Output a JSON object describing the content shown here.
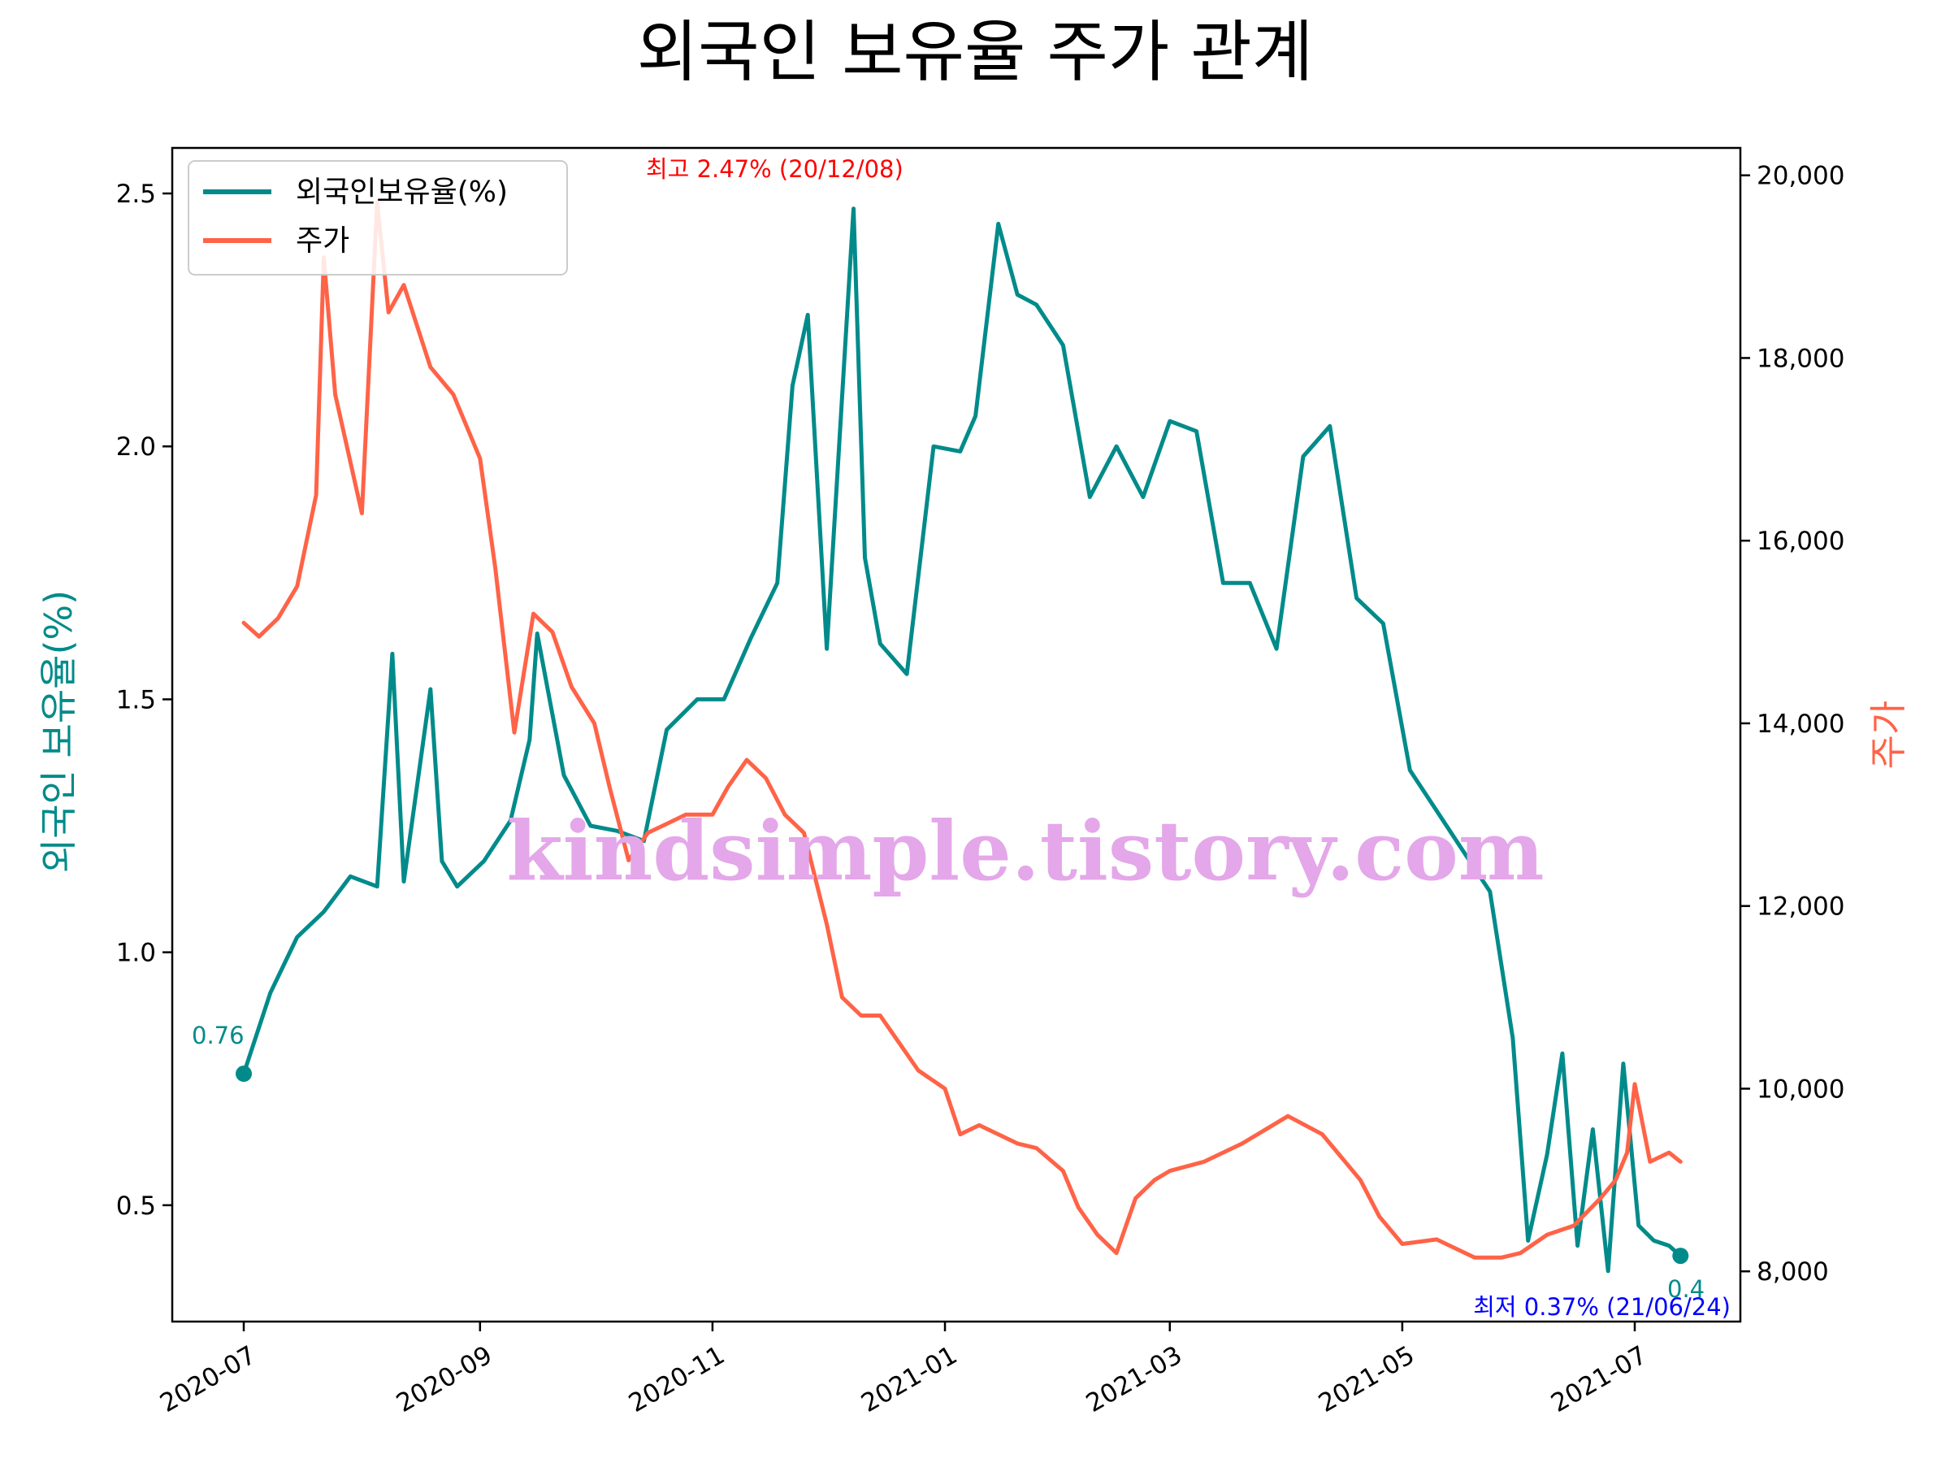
{
  "chart_data": {
    "type": "line",
    "title": "외국인 보유율 주가 관계",
    "x_ticks": [
      "2020-07",
      "2020-09",
      "2020-11",
      "2021-01",
      "2021-03",
      "2021-05",
      "2021-07"
    ],
    "y_left": {
      "label": "외국인 보유율(%)",
      "ticks": [
        "0.5",
        "1.0",
        "1.5",
        "2.0",
        "2.5"
      ],
      "ylim": [
        0.27,
        2.59
      ]
    },
    "y_right": {
      "label": "주가",
      "ticks": [
        "8,000",
        "10,000",
        "12,000",
        "14,000",
        "16,000",
        "18,000",
        "20,000"
      ],
      "ylim": [
        7450,
        20300
      ]
    },
    "colors": {
      "ratio": "#008b8a",
      "price": "#ff6347",
      "max": "#ff0000",
      "min": "#0000ff",
      "watermark": "#e4a7e9"
    },
    "legend": {
      "placement": "upper-left",
      "entries": [
        "외국인보유율(%)",
        "주가"
      ]
    },
    "grid": false,
    "series": [
      {
        "name": "외국인보유율(%)",
        "axis": "left",
        "x": [
          "2020-07-01",
          "2020-07-08",
          "2020-07-15",
          "2020-07-22",
          "2020-07-29",
          "2020-08-05",
          "2020-08-09",
          "2020-08-12",
          "2020-08-19",
          "2020-08-22",
          "2020-08-26",
          "2020-09-02",
          "2020-09-09",
          "2020-09-14",
          "2020-09-16",
          "2020-09-23",
          "2020-09-30",
          "2020-10-07",
          "2020-10-14",
          "2020-10-20",
          "2020-10-28",
          "2020-11-04",
          "2020-11-11",
          "2020-11-18",
          "2020-11-22",
          "2020-11-26",
          "2020-12-01",
          "2020-12-08",
          "2020-12-11",
          "2020-12-15",
          "2020-12-22",
          "2020-12-29",
          "2021-01-05",
          "2021-01-09",
          "2021-01-15",
          "2021-01-20",
          "2021-01-25",
          "2021-02-01",
          "2021-02-08",
          "2021-02-15",
          "2021-02-22",
          "2021-03-01",
          "2021-03-08",
          "2021-03-15",
          "2021-03-22",
          "2021-03-29",
          "2021-04-05",
          "2021-04-12",
          "2021-04-19",
          "2021-04-26",
          "2021-05-03",
          "2021-05-10",
          "2021-05-17",
          "2021-05-24",
          "2021-05-30",
          "2021-06-03",
          "2021-06-08",
          "2021-06-12",
          "2021-06-16",
          "2021-06-20",
          "2021-06-24",
          "2021-06-28",
          "2021-07-02",
          "2021-07-06",
          "2021-07-10",
          "2021-07-13"
        ],
        "values": [
          0.76,
          0.92,
          1.03,
          1.08,
          1.15,
          1.13,
          1.59,
          1.14,
          1.52,
          1.18,
          1.13,
          1.18,
          1.26,
          1.42,
          1.63,
          1.35,
          1.25,
          1.24,
          1.22,
          1.44,
          1.5,
          1.5,
          1.62,
          1.73,
          2.12,
          2.26,
          1.6,
          2.47,
          1.78,
          1.61,
          1.55,
          2.0,
          1.99,
          2.06,
          2.44,
          2.3,
          2.28,
          2.2,
          1.9,
          2.0,
          1.9,
          2.05,
          2.03,
          1.73,
          1.73,
          1.6,
          1.98,
          2.04,
          1.7,
          1.65,
          1.36,
          1.28,
          1.2,
          1.12,
          0.83,
          0.43,
          0.6,
          0.8,
          0.42,
          0.65,
          0.37,
          0.78,
          0.46,
          0.43,
          0.42,
          0.4
        ]
      },
      {
        "name": "주가",
        "axis": "right",
        "x": [
          "2020-07-01",
          "2020-07-05",
          "2020-07-10",
          "2020-07-15",
          "2020-07-20",
          "2020-07-22",
          "2020-07-25",
          "2020-08-01",
          "2020-08-05",
          "2020-08-08",
          "2020-08-12",
          "2020-08-19",
          "2020-08-25",
          "2020-09-01",
          "2020-09-05",
          "2020-09-10",
          "2020-09-15",
          "2020-09-20",
          "2020-09-25",
          "2020-10-01",
          "2020-10-05",
          "2020-10-10",
          "2020-10-15",
          "2020-10-20",
          "2020-10-25",
          "2020-11-01",
          "2020-11-05",
          "2020-11-10",
          "2020-11-15",
          "2020-11-20",
          "2020-11-25",
          "2020-12-01",
          "2020-12-05",
          "2020-12-10",
          "2020-12-15",
          "2020-12-20",
          "2020-12-25",
          "2021-01-01",
          "2021-01-05",
          "2021-01-10",
          "2021-01-15",
          "2021-01-20",
          "2021-01-25",
          "2021-02-01",
          "2021-02-05",
          "2021-02-10",
          "2021-02-15",
          "2021-02-20",
          "2021-02-25",
          "2021-03-01",
          "2021-03-10",
          "2021-03-20",
          "2021-04-01",
          "2021-04-10",
          "2021-04-20",
          "2021-04-25",
          "2021-05-01",
          "2021-05-10",
          "2021-05-20",
          "2021-05-27",
          "2021-06-01",
          "2021-06-08",
          "2021-06-15",
          "2021-06-22",
          "2021-06-26",
          "2021-06-29",
          "2021-07-01",
          "2021-07-05",
          "2021-07-10",
          "2021-07-13"
        ],
        "values": [
          15100,
          14950,
          15150,
          15500,
          16500,
          19100,
          17600,
          16300,
          19700,
          18500,
          18800,
          17900,
          17600,
          16900,
          15700,
          13900,
          15200,
          15000,
          14400,
          14000,
          13300,
          12500,
          12800,
          12900,
          13000,
          13000,
          13300,
          13600,
          13400,
          13000,
          12800,
          11800,
          11000,
          10800,
          10800,
          10500,
          10200,
          10000,
          9500,
          9600,
          9500,
          9400,
          9350,
          9100,
          8700,
          8400,
          8200,
          8800,
          9000,
          9100,
          9200,
          9400,
          9700,
          9500,
          9000,
          8600,
          8300,
          8350,
          8150,
          8150,
          8200,
          8400,
          8500,
          8800,
          9000,
          9300,
          10050,
          9200,
          9300,
          9200
        ]
      }
    ],
    "annotations": {
      "max": "최고 2.47% (20/12/08)",
      "min": "최저 0.37% (21/06/24)",
      "start": "0.76",
      "end": "0.4"
    },
    "watermark": "kindsimple.tistory.com"
  }
}
